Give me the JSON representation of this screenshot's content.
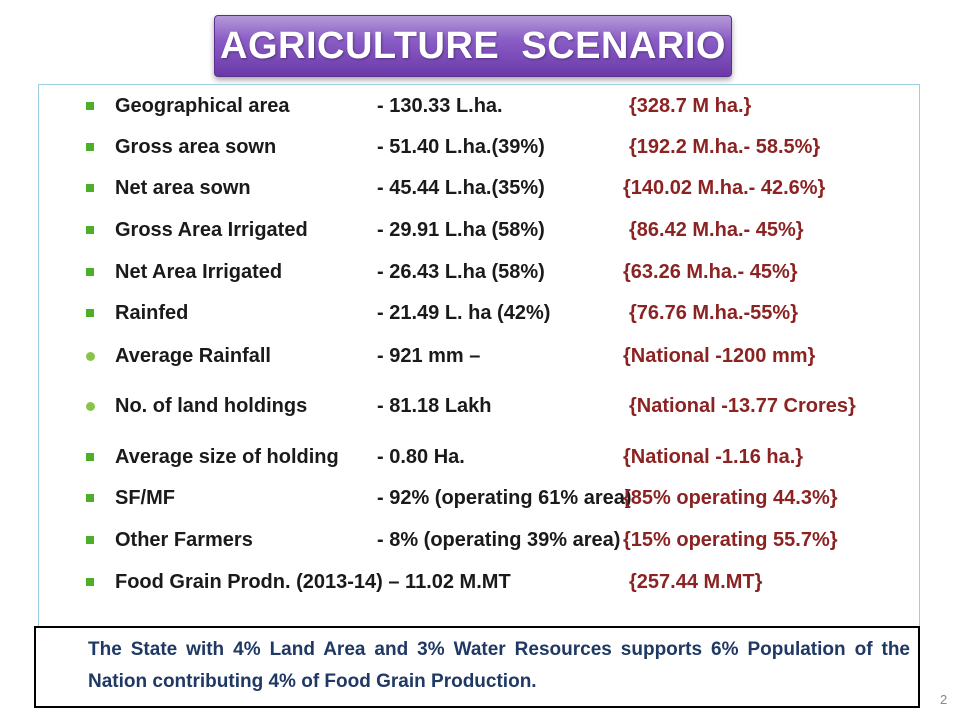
{
  "title": "AGRICULTURE  SCENARIO",
  "rows": [
    {
      "bullet": "square",
      "label": "Geographical area",
      "value": "- 130.33 L.ha.",
      "national": "{328.7 M ha.}"
    },
    {
      "bullet": "square",
      "label": "Gross area sown",
      "value": "- 51.40 L.ha.(39%)",
      "national": "{192.2 M.ha.- 58.5%}"
    },
    {
      "bullet": "square",
      "label": "Net area sown",
      "value": "- 45.44 L.ha.(35%)",
      "national": "{140.02 M.ha.- 42.6%}"
    },
    {
      "bullet": "square",
      "label": "Gross  Area Irrigated",
      "value": "- 29.91 L.ha (58%)",
      "national": "{86.42 M.ha.- 45%}"
    },
    {
      "bullet": "square",
      "label": "Net  Area Irrigated",
      "value": "- 26.43 L.ha (58%)",
      "national": "{63.26 M.ha.- 45%}"
    },
    {
      "bullet": "square",
      "label": "Rainfed",
      "value": "- 21.49 L. ha  (42%)",
      "national": "{76.76 M.ha.-55%}"
    },
    {
      "bullet": "round",
      "label": "Average Rainfall",
      "value": "- 921 mm –",
      "national": "{National -1200 mm}"
    },
    {
      "bullet": "round",
      "label": "No. of land holdings",
      "value": "- 81.18 Lakh",
      "national": "{National -13.77 Crores}"
    },
    {
      "bullet": "square",
      "label": "Average size of holding",
      "value": "- 0.80 Ha.",
      "national": "{National -1.16 ha.}"
    },
    {
      "bullet": "square",
      "label": "SF/MF",
      "value": "- 92% (operating 61% area)",
      "national": "{85%  operating 44.3%}"
    },
    {
      "bullet": "square",
      "label": "Other Farmers",
      "value": "- 8% (operating 39% area)",
      "national": "{15%  operating 55.7%}"
    },
    {
      "bullet": "square",
      "label": "Food Grain Prodn. (2013-14) – 11.02 M.MT",
      "value": "",
      "national": "{257.44 M.MT}"
    }
  ],
  "footer": "The State with 4% Land Area and 3% Water Resources supports 6% Population of the Nation contributing 4% of Food Grain Production.",
  "page_number": "2"
}
